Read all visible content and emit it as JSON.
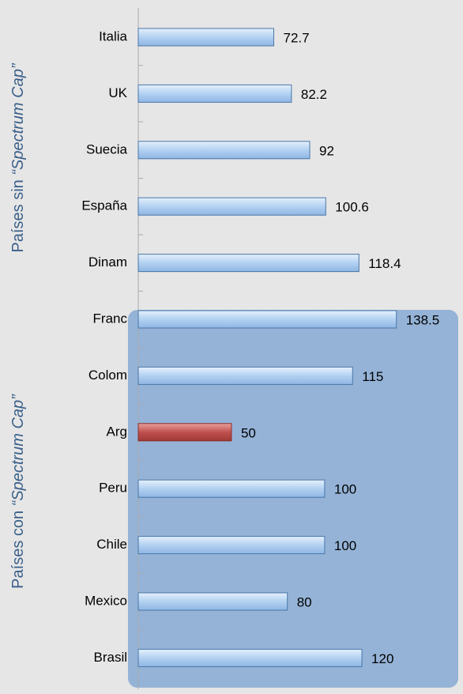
{
  "chart_data": {
    "type": "hbar",
    "categories": [
      "Italia",
      "UK",
      "Suecia",
      "España",
      "Dinam",
      "Franc",
      "Colom",
      "Arg",
      "Peru",
      "Chile",
      "Mexico",
      "Brasil"
    ],
    "values": [
      72.7,
      82.2,
      92,
      100.6,
      118.4,
      138.5,
      115,
      50,
      100,
      100,
      80,
      120
    ],
    "colors": [
      "#b3d1f2",
      "#b3d1f2",
      "#b3d1f2",
      "#b3d1f2",
      "#b3d1f2",
      "#b3d1f2",
      "#b3d1f2",
      "#c0504d",
      "#b3d1f2",
      "#b3d1f2",
      "#b3d1f2",
      "#b3d1f2"
    ],
    "xlim": [
      0,
      170
    ],
    "groups": [
      {
        "text": "Países sin ",
        "italic": "“Spectrum Cap”"
      },
      {
        "text": "Países con ",
        "italic": "“Spectrum Cap”"
      }
    ]
  }
}
